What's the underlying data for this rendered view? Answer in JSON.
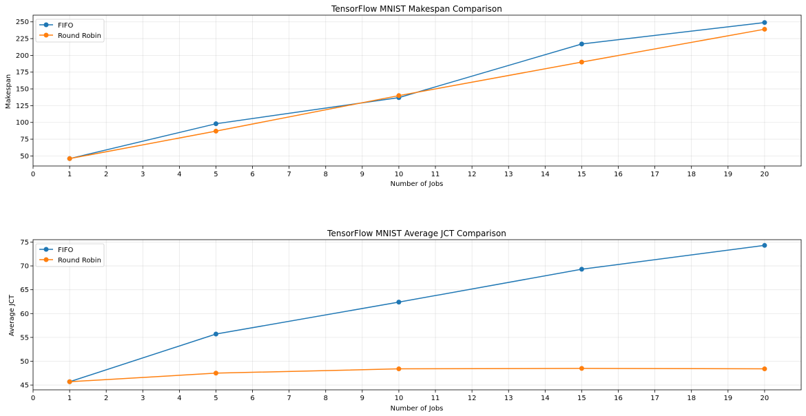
{
  "chart_data": [
    {
      "type": "line",
      "title": "TensorFlow MNIST Makespan Comparison",
      "xlabel": "Number of Jobs",
      "ylabel": "Makespan",
      "xlim": [
        0,
        21
      ],
      "ylim": [
        35,
        260
      ],
      "xticks": [
        0,
        1,
        2,
        3,
        4,
        5,
        6,
        7,
        8,
        9,
        10,
        11,
        12,
        13,
        14,
        15,
        16,
        17,
        18,
        19,
        20
      ],
      "yticks": [
        50,
        75,
        100,
        125,
        150,
        175,
        200,
        225,
        250
      ],
      "grid": true,
      "legend_placement": "upper-left",
      "x": [
        1,
        5,
        10,
        15,
        20
      ],
      "series": [
        {
          "name": "FIFO",
          "color": "#1f77b4",
          "values": [
            46,
            98,
            137,
            217,
            249
          ]
        },
        {
          "name": "Round Robin",
          "color": "#ff7f0e",
          "values": [
            46,
            87,
            140,
            190,
            239
          ]
        }
      ]
    },
    {
      "type": "line",
      "title": "TensorFlow MNIST Average JCT Comparison",
      "xlabel": "Number of Jobs",
      "ylabel": "Average JCT",
      "xlim": [
        0,
        21
      ],
      "ylim": [
        44,
        75.5
      ],
      "xticks": [
        0,
        1,
        2,
        3,
        4,
        5,
        6,
        7,
        8,
        9,
        10,
        11,
        12,
        13,
        14,
        15,
        16,
        17,
        18,
        19,
        20
      ],
      "yticks": [
        45,
        50,
        55,
        60,
        65,
        70,
        75
      ],
      "grid": true,
      "legend_placement": "upper-left",
      "x": [
        1,
        5,
        10,
        15,
        20
      ],
      "series": [
        {
          "name": "FIFO",
          "color": "#1f77b4",
          "values": [
            45.7,
            55.7,
            62.4,
            69.3,
            74.3
          ]
        },
        {
          "name": "Round Robin",
          "color": "#ff7f0e",
          "values": [
            45.7,
            47.5,
            48.4,
            48.5,
            48.4
          ]
        }
      ]
    }
  ]
}
